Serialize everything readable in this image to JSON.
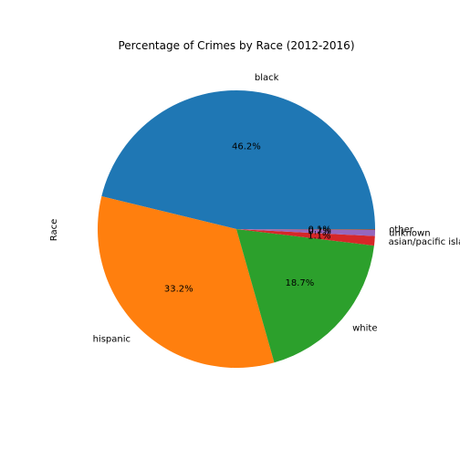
{
  "chart_data": {
    "type": "pie",
    "title": "Percentage of Crimes by Race (2012-2016)",
    "ylabel": "Race",
    "start_angle_deg": 0,
    "direction": "counterclockwise",
    "slices": [
      {
        "label": "black",
        "value": 46.2,
        "pct_label": "46.2%",
        "color": "#1f77b4"
      },
      {
        "label": "hispanic",
        "value": 33.2,
        "pct_label": "33.2%",
        "color": "#ff7f0e"
      },
      {
        "label": "white",
        "value": 18.7,
        "pct_label": "18.7%",
        "color": "#2ca02c"
      },
      {
        "label": "asian/pacific islander",
        "value": 1.1,
        "pct_label": "1.1%",
        "color": "#d62728"
      },
      {
        "label": "unknown",
        "value": 0.7,
        "pct_label": "0.7%",
        "color": "#9467bd"
      },
      {
        "label": "other",
        "value": 0.1,
        "pct_label": "0.1%",
        "color": "#8c564b"
      }
    ]
  }
}
